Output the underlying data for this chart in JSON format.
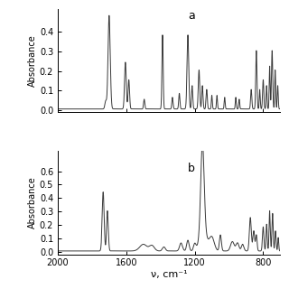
{
  "title_a": "a",
  "title_b": "b",
  "xlabel": "ν, cm⁻¹",
  "ylabel": "Absorbance",
  "xmin": 2000,
  "xmax": 700,
  "ylim_a": [
    -0.01,
    0.52
  ],
  "ylim_b": [
    -0.02,
    0.75
  ],
  "yticks_a": [
    0.0,
    0.1,
    0.2,
    0.3,
    0.4
  ],
  "yticks_b": [
    0.0,
    0.1,
    0.2,
    0.3,
    0.4,
    0.5,
    0.6
  ],
  "xticks": [
    2000,
    1600,
    1200,
    800
  ],
  "line_color": "#3a3a3a",
  "bg_color": "#ffffff"
}
